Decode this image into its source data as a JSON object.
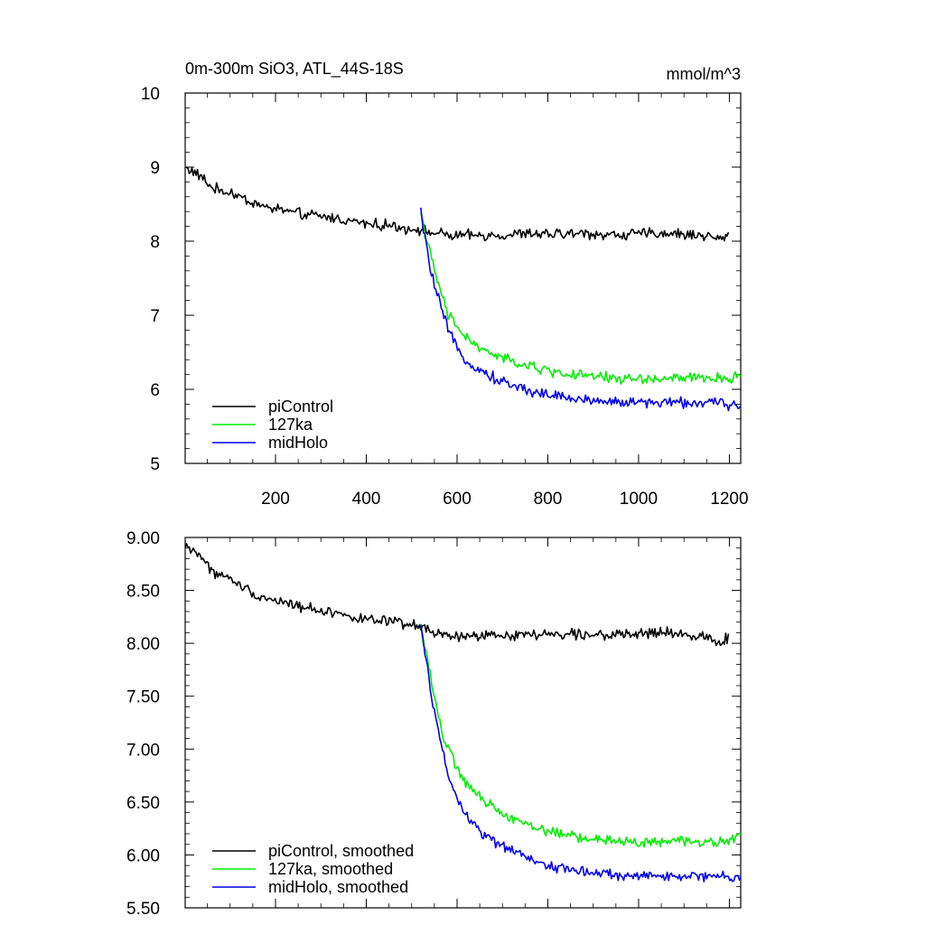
{
  "header": {
    "title": "0m-300m SiO3, ATL_44S-18S",
    "units": "mmol/m^3"
  },
  "chart_data": [
    {
      "type": "line",
      "title": "0m-300m SiO3, ATL_44S-18S",
      "units": "mmol/m^3",
      "xlabel": "",
      "ylabel": "",
      "xlim": [
        1,
        1225
      ],
      "ylim": [
        5,
        10
      ],
      "x_ticks": [
        "200",
        "400",
        "600",
        "800",
        "1000",
        "1200"
      ],
      "y_ticks": [
        "5",
        "6",
        "7",
        "8",
        "9",
        "10"
      ],
      "grid": false,
      "legend_position": "bottom-left",
      "series": [
        {
          "name": "piControl",
          "color": "#000000",
          "x": [
            1,
            20,
            40,
            60,
            80,
            100,
            120,
            140,
            160,
            180,
            200,
            220,
            240,
            260,
            280,
            300,
            320,
            340,
            360,
            380,
            400,
            420,
            440,
            460,
            480,
            500,
            520,
            540,
            560,
            580,
            600,
            650,
            700,
            750,
            800,
            850,
            900,
            950,
            1000,
            1050,
            1100,
            1150,
            1180,
            1200
          ],
          "y": [
            9.0,
            8.93,
            8.85,
            8.72,
            8.68,
            8.66,
            8.6,
            8.55,
            8.5,
            8.45,
            8.44,
            8.42,
            8.38,
            8.36,
            8.35,
            8.33,
            8.32,
            8.3,
            8.28,
            8.26,
            8.24,
            8.22,
            8.22,
            8.2,
            8.18,
            8.17,
            8.16,
            8.12,
            8.1,
            8.08,
            8.07,
            8.08,
            8.08,
            8.1,
            8.09,
            8.1,
            8.1,
            8.08,
            8.1,
            8.11,
            8.09,
            8.08,
            8.02,
            8.1
          ]
        },
        {
          "name": "127ka",
          "color": "#00ee00",
          "x": [
            520,
            530,
            540,
            550,
            560,
            570,
            580,
            600,
            620,
            650,
            700,
            750,
            800,
            850,
            900,
            950,
            1000,
            1050,
            1100,
            1150,
            1200,
            1225
          ],
          "y": [
            8.4,
            8.1,
            7.85,
            7.6,
            7.4,
            7.2,
            7.0,
            6.85,
            6.7,
            6.55,
            6.42,
            6.32,
            6.25,
            6.2,
            6.17,
            6.15,
            6.14,
            6.14,
            6.15,
            6.15,
            6.14,
            6.2
          ]
        },
        {
          "name": "midHolo",
          "color": "#0000ee",
          "x": [
            520,
            530,
            540,
            550,
            560,
            570,
            580,
            600,
            620,
            650,
            700,
            750,
            800,
            850,
            900,
            950,
            1000,
            1050,
            1100,
            1150,
            1200,
            1225
          ],
          "y": [
            8.4,
            8.0,
            7.7,
            7.4,
            7.2,
            7.0,
            6.8,
            6.55,
            6.4,
            6.25,
            6.1,
            6.0,
            5.93,
            5.88,
            5.85,
            5.83,
            5.82,
            5.82,
            5.82,
            5.82,
            5.8,
            5.78
          ]
        }
      ]
    },
    {
      "type": "line",
      "title": "",
      "xlabel": "",
      "ylabel": "",
      "xlim": [
        1,
        1225
      ],
      "ylim": [
        5.5,
        9.0
      ],
      "x_ticks": [],
      "y_ticks": [
        "5.50",
        "6.00",
        "6.50",
        "7.00",
        "7.50",
        "8.00",
        "8.50",
        "9.00"
      ],
      "grid": false,
      "legend_position": "bottom-left",
      "series": [
        {
          "name": "piControl, smoothed",
          "color": "#000000",
          "x": [
            1,
            20,
            40,
            60,
            80,
            100,
            120,
            140,
            160,
            180,
            200,
            220,
            240,
            260,
            280,
            300,
            320,
            340,
            360,
            380,
            400,
            420,
            440,
            460,
            480,
            500,
            520,
            540,
            560,
            580,
            600,
            650,
            700,
            750,
            800,
            850,
            900,
            950,
            1000,
            1050,
            1100,
            1150,
            1180,
            1200
          ],
          "y": [
            8.92,
            8.88,
            8.8,
            8.68,
            8.64,
            8.6,
            8.56,
            8.5,
            8.46,
            8.42,
            8.41,
            8.39,
            8.36,
            8.34,
            8.33,
            8.31,
            8.3,
            8.28,
            8.26,
            8.24,
            8.22,
            8.21,
            8.21,
            8.2,
            8.18,
            8.17,
            8.16,
            8.12,
            8.08,
            8.07,
            8.06,
            8.07,
            8.07,
            8.09,
            8.08,
            8.09,
            8.09,
            8.07,
            8.09,
            8.1,
            8.08,
            8.07,
            8.0,
            8.07
          ]
        },
        {
          "name": "127ka, smoothed",
          "color": "#00ee00",
          "x": [
            520,
            530,
            540,
            550,
            560,
            570,
            580,
            600,
            620,
            650,
            700,
            750,
            800,
            850,
            900,
            950,
            1000,
            1050,
            1100,
            1150,
            1200,
            1225
          ],
          "y": [
            8.15,
            7.95,
            7.75,
            7.5,
            7.3,
            7.1,
            7.0,
            6.82,
            6.68,
            6.54,
            6.4,
            6.3,
            6.23,
            6.18,
            6.15,
            6.13,
            6.12,
            6.12,
            6.13,
            6.13,
            6.12,
            6.2
          ]
        },
        {
          "name": "midHolo, smoothed",
          "color": "#0000ee",
          "x": [
            520,
            530,
            540,
            550,
            560,
            570,
            580,
            600,
            620,
            650,
            700,
            750,
            800,
            850,
            900,
            950,
            1000,
            1050,
            1100,
            1150,
            1200,
            1225
          ],
          "y": [
            8.15,
            7.9,
            7.6,
            7.35,
            7.15,
            6.95,
            6.75,
            6.52,
            6.38,
            6.22,
            6.08,
            5.98,
            5.9,
            5.86,
            5.83,
            5.81,
            5.8,
            5.8,
            5.8,
            5.8,
            5.79,
            5.77
          ]
        }
      ]
    }
  ]
}
